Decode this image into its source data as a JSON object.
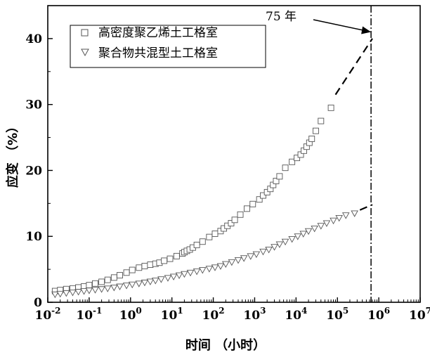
{
  "chart_data": {
    "type": "scatter",
    "xlabel": "时间 （小时）",
    "ylabel": "应变 （%）",
    "x_scale": "log",
    "xlim": [
      0.01,
      10000000
    ],
    "ylim": [
      0,
      45
    ],
    "x_ticks": [
      {
        "value": 0.01,
        "base": "10",
        "exp": "-2"
      },
      {
        "value": 0.1,
        "base": "10",
        "exp": "-1"
      },
      {
        "value": 1,
        "base": "10",
        "exp": "0"
      },
      {
        "value": 10,
        "base": "10",
        "exp": "1"
      },
      {
        "value": 100,
        "base": "10",
        "exp": "2"
      },
      {
        "value": 1000,
        "base": "10",
        "exp": "3"
      },
      {
        "value": 10000,
        "base": "10",
        "exp": "4"
      },
      {
        "value": 100000,
        "base": "10",
        "exp": "5"
      },
      {
        "value": 1000000,
        "base": "10",
        "exp": "6"
      },
      {
        "value": 10000000,
        "base": "10",
        "exp": "7"
      }
    ],
    "y_ticks": [
      0,
      10,
      20,
      30,
      40
    ],
    "grid": false,
    "legend_position": "top-left",
    "series": [
      {
        "name": "高密度聚乙烯土工格室",
        "marker": "square",
        "x": [
          0.015,
          0.02,
          0.028,
          0.04,
          0.055,
          0.075,
          0.1,
          0.14,
          0.2,
          0.28,
          0.4,
          0.55,
          0.8,
          1.1,
          1.6,
          2.2,
          3,
          4,
          5,
          6.5,
          9,
          13,
          18,
          20,
          23,
          27,
          32,
          40,
          55,
          80,
          110,
          150,
          180,
          220,
          270,
          330,
          450,
          650,
          900,
          1300,
          1600,
          2000,
          2400,
          2800,
          3300,
          4000,
          5500,
          8000,
          10500,
          13000,
          15500,
          18000,
          21000,
          24000,
          30000,
          40000,
          70000
        ],
        "y": [
          1.7,
          1.85,
          2.0,
          2.1,
          2.25,
          2.4,
          2.6,
          2.85,
          3.1,
          3.4,
          3.75,
          4.1,
          4.5,
          4.9,
          5.25,
          5.5,
          5.7,
          5.85,
          6.0,
          6.3,
          6.6,
          7.0,
          7.4,
          7.6,
          7.8,
          8.0,
          8.3,
          8.7,
          9.2,
          9.9,
          10.4,
          10.8,
          11.2,
          11.6,
          12.0,
          12.5,
          13.3,
          14.2,
          14.9,
          15.6,
          16.2,
          16.7,
          17.2,
          17.8,
          18.4,
          19.1,
          20.4,
          21.3,
          21.9,
          22.4,
          23.0,
          23.6,
          24.2,
          24.8,
          26.0,
          27.5,
          29.5
        ],
        "extrapolation": {
          "x": [
            90000,
            700000
          ],
          "y": [
            31.5,
            40.0
          ]
        }
      },
      {
        "name": "聚合物共混型土工格室",
        "marker": "triangle-down",
        "x": [
          0.015,
          0.02,
          0.028,
          0.04,
          0.055,
          0.075,
          0.1,
          0.14,
          0.2,
          0.28,
          0.4,
          0.55,
          0.8,
          1.1,
          1.6,
          2.2,
          3,
          4,
          5.5,
          8,
          11,
          15,
          20,
          28,
          40,
          55,
          80,
          110,
          150,
          200,
          280,
          400,
          550,
          800,
          1100,
          1600,
          2200,
          3000,
          4000,
          5500,
          8000,
          11000,
          15000,
          20000,
          28000,
          40000,
          55000,
          80000,
          110000,
          160000,
          260000
        ],
        "y": [
          1.2,
          1.3,
          1.4,
          1.5,
          1.6,
          1.7,
          1.8,
          1.9,
          2.0,
          2.1,
          2.25,
          2.4,
          2.55,
          2.7,
          2.85,
          3.0,
          3.15,
          3.3,
          3.5,
          3.7,
          3.9,
          4.1,
          4.3,
          4.5,
          4.7,
          4.9,
          5.1,
          5.3,
          5.5,
          5.8,
          6.1,
          6.4,
          6.7,
          7.0,
          7.3,
          7.7,
          8.0,
          8.4,
          8.8,
          9.2,
          9.6,
          10.0,
          10.4,
          10.8,
          11.2,
          11.6,
          12.0,
          12.4,
          12.8,
          13.2,
          13.5
        ],
        "extrapolation": {
          "x": [
            350000,
            700000
          ],
          "y": [
            14.0,
            14.8
          ]
        }
      }
    ],
    "reference_line": {
      "x": 650000,
      "style": "dash-dot"
    },
    "annotations": [
      {
        "text": "75 年",
        "target_x": 650000,
        "target_y": 41
      }
    ]
  }
}
